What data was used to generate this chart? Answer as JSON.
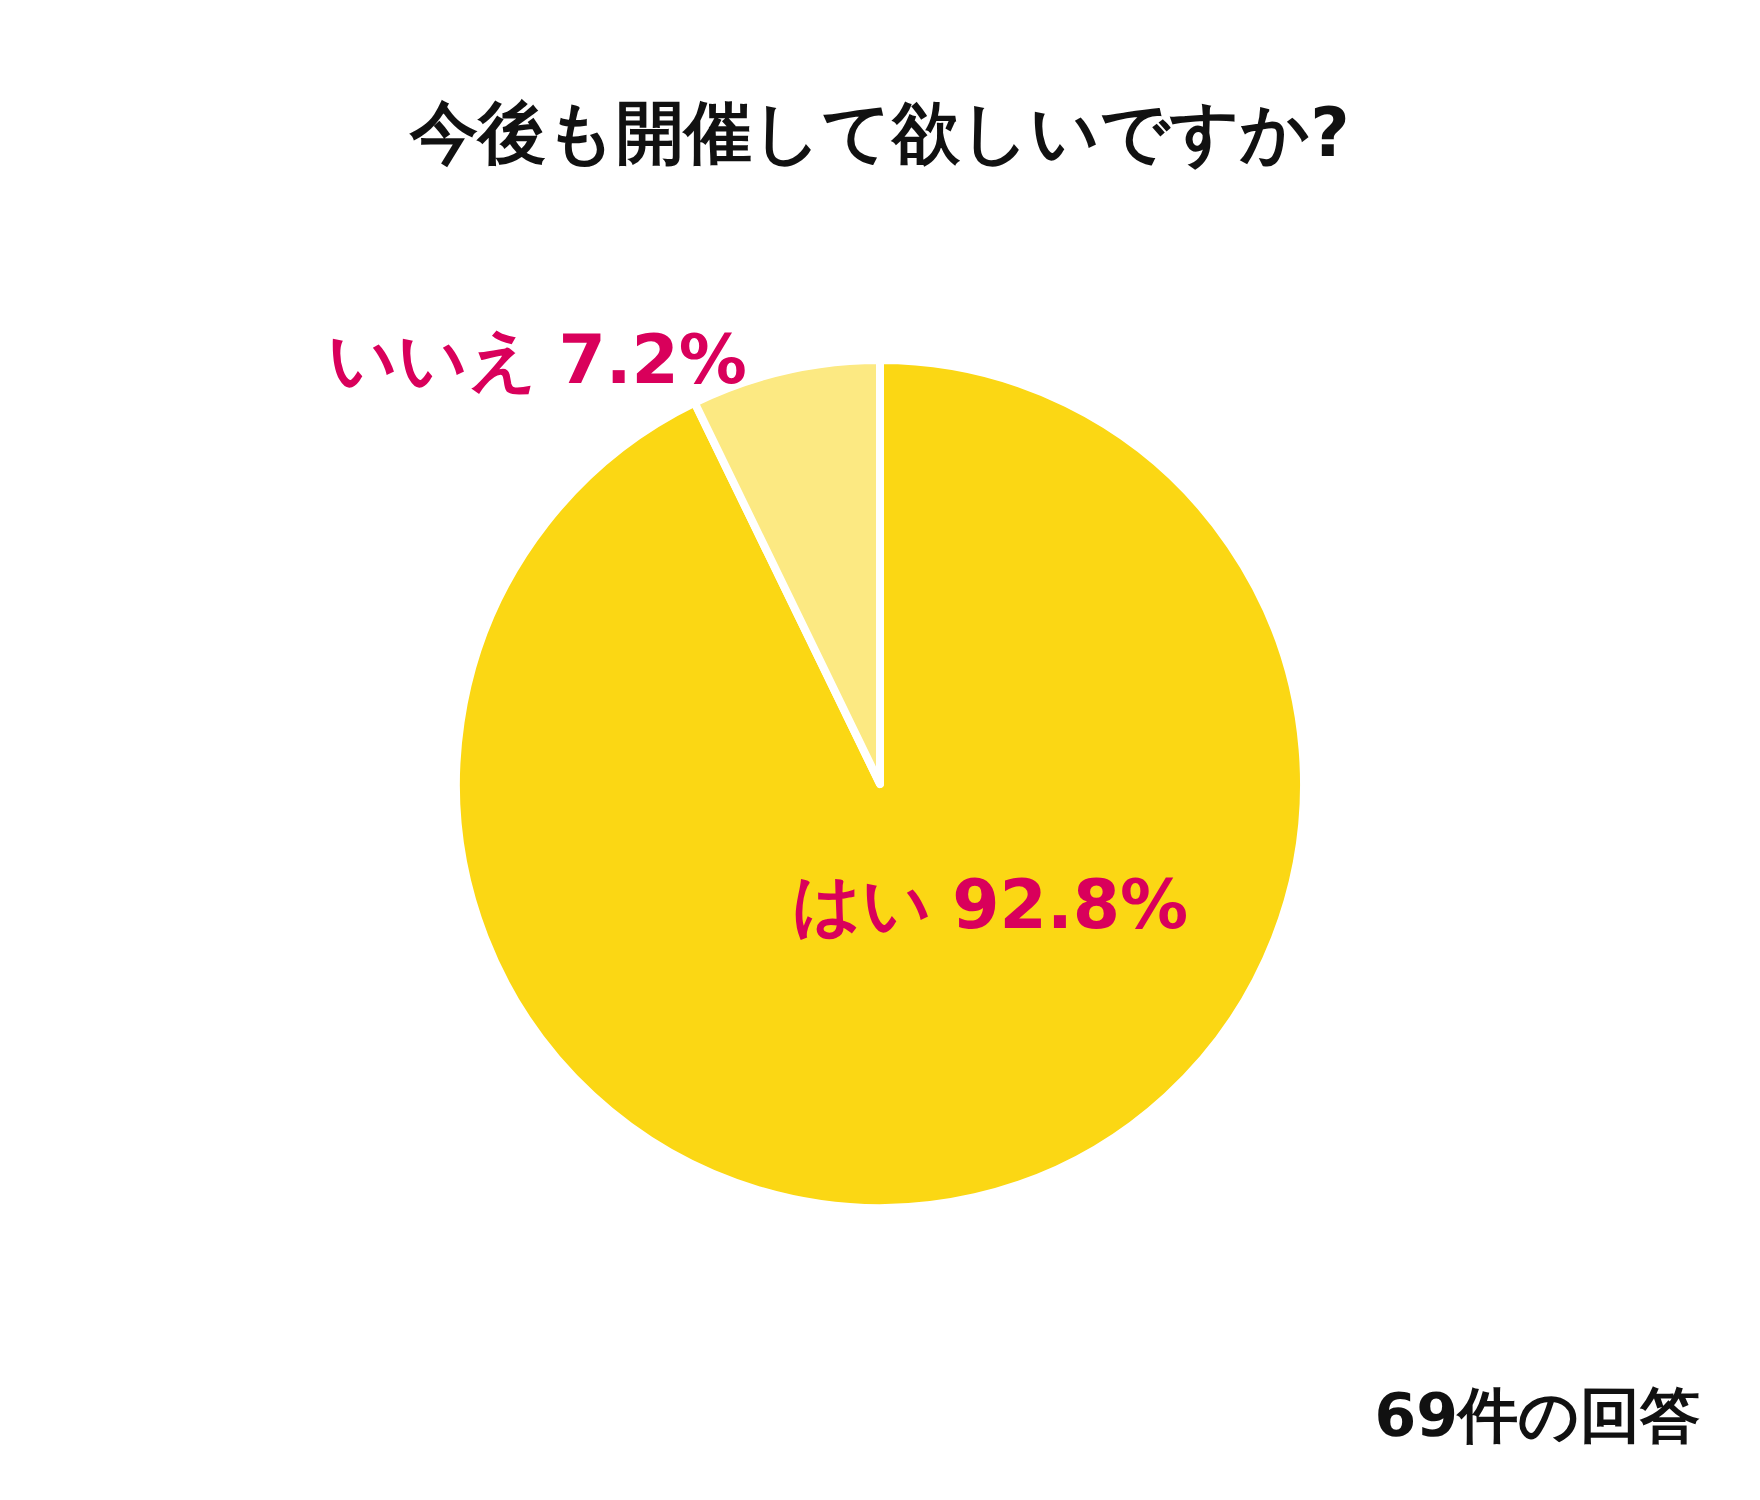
{
  "chart_data": {
    "type": "pie",
    "title": "今後も開催して欲しいですか?",
    "categories": [
      "はい",
      "いいえ"
    ],
    "values": [
      92.8,
      7.2
    ],
    "colors": [
      "#fbd714",
      "#fce982"
    ],
    "value_labels": [
      "92.8%",
      "7.2%"
    ],
    "annotations": [
      "69件の回答"
    ]
  }
}
